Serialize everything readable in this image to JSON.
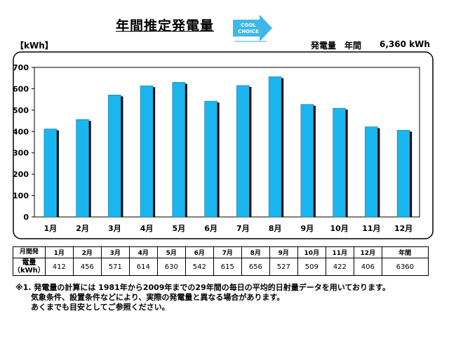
{
  "header": {
    "title": "年間推定発電量",
    "unit": "【kWh】",
    "annual_label": "発電量　年間",
    "annual_value": "6,360 kWh",
    "logo_line1": "COOL",
    "logo_line2": "CHOICE"
  },
  "chart_data": {
    "type": "bar",
    "categories": [
      "1月",
      "2月",
      "3月",
      "4月",
      "5月",
      "6月",
      "7月",
      "8月",
      "9月",
      "10月",
      "11月",
      "12月"
    ],
    "values": [
      412,
      456,
      571,
      614,
      630,
      542,
      615,
      656,
      527,
      509,
      422,
      406
    ],
    "ylim": [
      0,
      700
    ],
    "yticks": [
      "0",
      "100",
      "200",
      "300",
      "400",
      "500",
      "600",
      "700"
    ],
    "grid": false,
    "legend": "none",
    "colors": {
      "bar": "#1ab6f0",
      "shadow": "#000000",
      "frame": "#000000"
    }
  },
  "table": {
    "header_label": "月間発",
    "value_label_line1": "電量",
    "value_label_line2": "（kWh）",
    "months": [
      "1月",
      "2月",
      "3月",
      "4月",
      "5月",
      "6月",
      "7月",
      "8月",
      "9月",
      "10月",
      "11月",
      "12月"
    ],
    "values": [
      "412",
      "456",
      "571",
      "614",
      "630",
      "542",
      "615",
      "656",
      "527",
      "509",
      "422",
      "406"
    ],
    "total_label": "年間",
    "total_value": "6360"
  },
  "notes": {
    "line1": "※1. 発電量の計算には 1981年から2009年までの29年間の毎日の平均的日射量データを用いております。",
    "line2": "気象条件、設置条件などにより、実際の発電量と異なる場合があります。",
    "line3": "あくまでも目安としてご参照ください。"
  }
}
